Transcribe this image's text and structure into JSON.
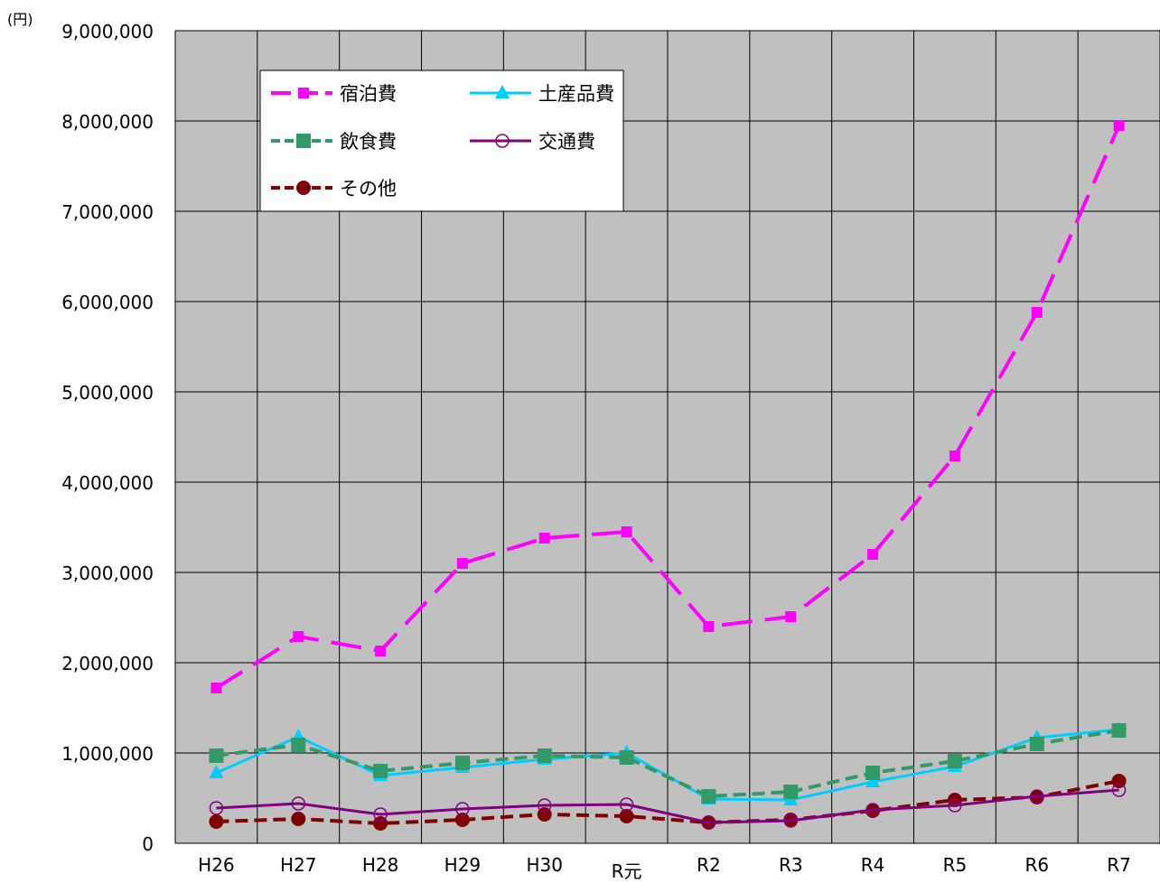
{
  "chart_data": {
    "type": "line",
    "unit_label": "(円)",
    "categories": [
      "H26",
      "H27",
      "H28",
      "H29",
      "H30",
      "R元",
      "R2",
      "R3",
      "R4",
      "R5",
      "R6",
      "R7"
    ],
    "ylim": [
      0,
      9000000
    ],
    "yticks": [
      0,
      1000000,
      2000000,
      3000000,
      4000000,
      5000000,
      6000000,
      7000000,
      8000000,
      9000000
    ],
    "ytick_labels": [
      "0",
      "1,000,000",
      "2,000,000",
      "3,000,000",
      "4,000,000",
      "5,000,000",
      "6,000,000",
      "7,000,000",
      "8,000,000",
      "9,000,000"
    ],
    "grid": true,
    "plot_background": "#c0c0c0",
    "legend_position": "top-left, inside",
    "series": [
      {
        "name": "宿泊費",
        "color": "#ff00ff",
        "dash": "long-dash",
        "marker": "square",
        "values": [
          1720000,
          2290000,
          2130000,
          3100000,
          3380000,
          3450000,
          2400000,
          2510000,
          3200000,
          4290000,
          5880000,
          7950000
        ]
      },
      {
        "name": "土産品費",
        "color": "#00ccff",
        "dash": "solid",
        "marker": "triangle",
        "values": [
          780000,
          1180000,
          750000,
          840000,
          930000,
          1000000,
          490000,
          480000,
          680000,
          850000,
          1170000,
          1260000
        ]
      },
      {
        "name": "飲食費",
        "color": "#339966",
        "dash": "dashed",
        "marker": "square-large",
        "values": [
          970000,
          1090000,
          800000,
          890000,
          970000,
          950000,
          520000,
          570000,
          780000,
          910000,
          1100000,
          1250000
        ]
      },
      {
        "name": "交通費",
        "color": "#800080",
        "dash": "solid",
        "marker": "circle-open",
        "values": [
          390000,
          440000,
          320000,
          380000,
          420000,
          430000,
          230000,
          250000,
          370000,
          420000,
          520000,
          590000
        ]
      },
      {
        "name": "その他",
        "color": "#800000",
        "dash": "dashed",
        "marker": "circle-filled",
        "values": [
          240000,
          270000,
          220000,
          260000,
          320000,
          300000,
          230000,
          260000,
          360000,
          480000,
          510000,
          690000
        ]
      }
    ]
  }
}
